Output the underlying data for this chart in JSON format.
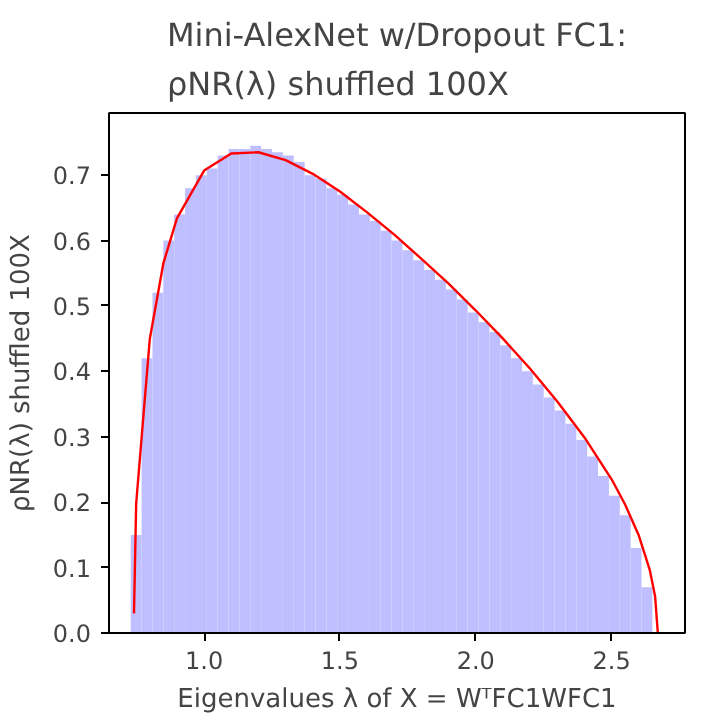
{
  "chart_data": {
    "type": "histogram",
    "title": "Mini-AlexNet w/Dropout FC1:\nρNR(λ) shuffled 100X",
    "xlabel": "Eigenvalues λ of X = WᵀFC1WFC1",
    "ylabel": "ρNR(λ) shuffled 100X",
    "bins": [
      0.73,
      0.77,
      0.81,
      0.85,
      0.89,
      0.93,
      0.97,
      1.01,
      1.05,
      1.09,
      1.13,
      1.17,
      1.21,
      1.25,
      1.29,
      1.33,
      1.37,
      1.41,
      1.45,
      1.49,
      1.53,
      1.57,
      1.61,
      1.65,
      1.69,
      1.73,
      1.77,
      1.81,
      1.85,
      1.89,
      1.93,
      1.97,
      2.01,
      2.05,
      2.09,
      2.13,
      2.17,
      2.21,
      2.25,
      2.29,
      2.33,
      2.37,
      2.41,
      2.45,
      2.49,
      2.53,
      2.57,
      2.61,
      2.65
    ],
    "values": [
      0.15,
      0.42,
      0.52,
      0.6,
      0.64,
      0.68,
      0.7,
      0.71,
      0.73,
      0.74,
      0.74,
      0.745,
      0.74,
      0.735,
      0.73,
      0.72,
      0.7,
      0.695,
      0.68,
      0.67,
      0.655,
      0.64,
      0.63,
      0.615,
      0.6,
      0.585,
      0.57,
      0.555,
      0.54,
      0.525,
      0.51,
      0.49,
      0.475,
      0.46,
      0.44,
      0.42,
      0.4,
      0.38,
      0.36,
      0.34,
      0.32,
      0.295,
      0.27,
      0.24,
      0.21,
      0.18,
      0.13,
      0.07
    ],
    "color": "#bfbfff",
    "series": [
      {
        "type": "line",
        "color": "#ff0000",
        "x": [
          0.742,
          0.75,
          0.8,
          0.85,
          0.9,
          1.0,
          1.1,
          1.2,
          1.3,
          1.4,
          1.5,
          1.6,
          1.7,
          1.8,
          1.9,
          2.0,
          2.1,
          2.2,
          2.3,
          2.4,
          2.5,
          2.55,
          2.6,
          2.64,
          2.66,
          2.67
        ],
        "values": [
          0.03,
          0.198,
          0.449,
          0.565,
          0.634,
          0.707,
          0.733,
          0.735,
          0.723,
          0.702,
          0.675,
          0.643,
          0.609,
          0.572,
          0.534,
          0.493,
          0.45,
          0.404,
          0.354,
          0.299,
          0.235,
          0.196,
          0.149,
          0.097,
          0.056,
          0.0
        ]
      }
    ],
    "xlim": [
      0.65,
      2.77
    ],
    "ylim": [
      0,
      0.795
    ],
    "xticks": [
      {
        "value": 1,
        "label": "1.0"
      },
      {
        "value": 1.5,
        "label": "1.5"
      },
      {
        "value": 2,
        "label": "2.0"
      },
      {
        "value": 2.5,
        "label": "2.5"
      }
    ],
    "yticks": [
      {
        "value": 0,
        "label": "0.0"
      },
      {
        "value": 0.1,
        "label": "0.1"
      },
      {
        "value": 0.2,
        "label": "0.2"
      },
      {
        "value": 0.3,
        "label": "0.3"
      },
      {
        "value": 0.4,
        "label": "0.4"
      },
      {
        "value": 0.5,
        "label": "0.5"
      },
      {
        "value": 0.6,
        "label": "0.6"
      },
      {
        "value": 0.7,
        "label": "0.7"
      }
    ],
    "grid": false
  }
}
